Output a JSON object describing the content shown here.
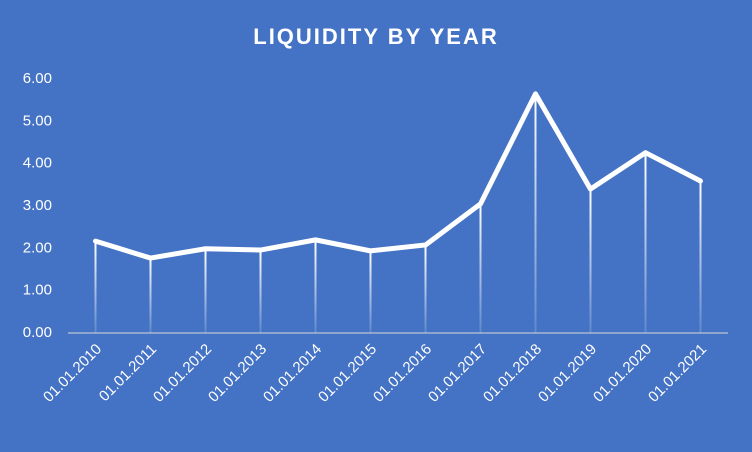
{
  "chart_data": {
    "type": "line",
    "title": "LIQUIDITY BY YEAR",
    "categories": [
      "01.01.2010",
      "01.01.2011",
      "01.01.2012",
      "01.01.2013",
      "01.01.2014",
      "01.01.2015",
      "01.01.2016",
      "01.01.2017",
      "01.01.2018",
      "01.01.2019",
      "01.01.2020",
      "01.01.2021"
    ],
    "values": [
      2.17,
      1.77,
      1.99,
      1.96,
      2.2,
      1.94,
      2.08,
      3.05,
      5.65,
      3.4,
      4.26,
      3.59
    ],
    "color": "#ffffff",
    "drop_lines": true,
    "ylim": [
      0,
      6
    ],
    "yticks": [
      {
        "value": 0,
        "label": "0.00"
      },
      {
        "value": 1,
        "label": "1.00"
      },
      {
        "value": 2,
        "label": "2.00"
      },
      {
        "value": 3,
        "label": "3.00"
      },
      {
        "value": 4,
        "label": "4.00"
      },
      {
        "value": 5,
        "label": "5.00"
      },
      {
        "value": 6,
        "label": "6.00"
      }
    ]
  }
}
